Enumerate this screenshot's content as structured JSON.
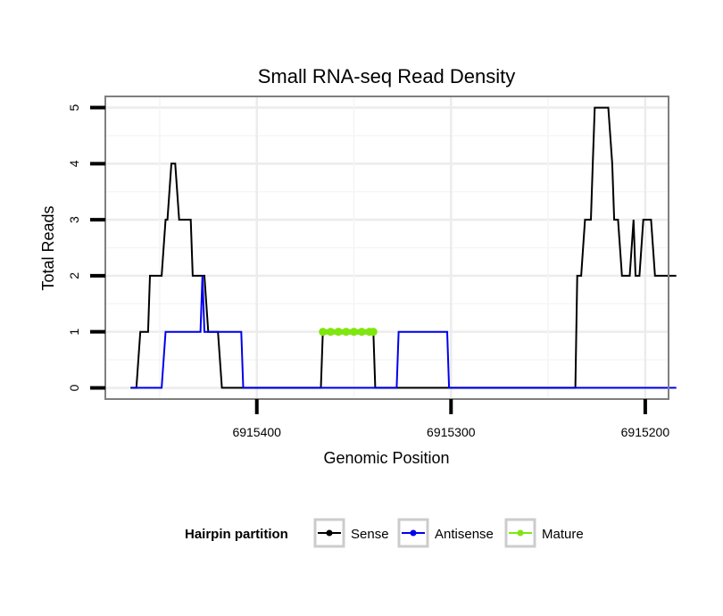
{
  "chart_data": {
    "type": "line",
    "title": "Small RNA-seq Read Density",
    "xlabel": "Genomic Position",
    "ylabel": "Total Reads",
    "x_reversed": true,
    "xlim": [
      6915478,
      6915188
    ],
    "ylim": [
      -0.2,
      5.2
    ],
    "x_ticks": [
      6915400,
      6915300,
      6915200
    ],
    "x_tick_labels": [
      "6915400",
      "6915300",
      "6915200"
    ],
    "y_ticks": [
      0,
      1,
      2,
      3,
      4,
      5
    ],
    "y_tick_labels": [
      "0",
      "1",
      "2",
      "3",
      "4",
      "5"
    ],
    "grid": true,
    "legend": {
      "title": "Hairpin partition",
      "position": "bottom",
      "entries": [
        "Sense",
        "Antisense",
        "Mature"
      ]
    },
    "series": [
      {
        "name": "Sense",
        "color": "#000000",
        "points": [
          [
            6915465,
            0
          ],
          [
            6915462,
            0
          ],
          [
            6915460,
            1
          ],
          [
            6915456,
            1
          ],
          [
            6915455,
            2
          ],
          [
            6915449,
            2
          ],
          [
            6915447,
            3
          ],
          [
            6915446,
            3
          ],
          [
            6915444,
            4
          ],
          [
            6915442,
            4
          ],
          [
            6915440,
            3
          ],
          [
            6915434,
            3
          ],
          [
            6915433,
            2
          ],
          [
            6915427,
            2
          ],
          [
            6915425,
            1
          ],
          [
            6915420,
            1
          ],
          [
            6915418,
            0
          ],
          [
            6915367,
            0
          ],
          [
            6915366,
            1
          ],
          [
            6915340,
            1
          ],
          [
            6915339,
            0
          ],
          [
            6915236,
            0
          ],
          [
            6915235,
            2
          ],
          [
            6915233,
            2
          ],
          [
            6915231,
            3
          ],
          [
            6915228,
            3
          ],
          [
            6915227,
            4
          ],
          [
            6915226,
            5
          ],
          [
            6915219,
            5
          ],
          [
            6915217,
            4
          ],
          [
            6915216,
            3
          ],
          [
            6915214,
            3
          ],
          [
            6915212,
            2
          ],
          [
            6915208,
            2
          ],
          [
            6915206,
            3
          ],
          [
            6915205,
            2
          ],
          [
            6915203,
            2
          ],
          [
            6915201,
            3
          ],
          [
            6915197,
            3
          ],
          [
            6915195,
            2
          ],
          [
            6915184,
            2
          ]
        ]
      },
      {
        "name": "Antisense",
        "color": "#0000ee",
        "points": [
          [
            6915465,
            0
          ],
          [
            6915449,
            0
          ],
          [
            6915447,
            1
          ],
          [
            6915429,
            1
          ],
          [
            6915428,
            2
          ],
          [
            6915427,
            1
          ],
          [
            6915408,
            1
          ],
          [
            6915407,
            0
          ],
          [
            6915328,
            0
          ],
          [
            6915327,
            1
          ],
          [
            6915302,
            1
          ],
          [
            6915301,
            0
          ],
          [
            6915184,
            0
          ]
        ]
      },
      {
        "name": "Mature",
        "color": "#7fe60f",
        "points": [
          [
            6915366,
            1
          ],
          [
            6915362,
            1
          ],
          [
            6915358,
            1
          ],
          [
            6915354,
            1
          ],
          [
            6915350,
            1
          ],
          [
            6915346,
            1
          ],
          [
            6915342,
            1
          ],
          [
            6915340,
            1
          ]
        ]
      }
    ]
  }
}
